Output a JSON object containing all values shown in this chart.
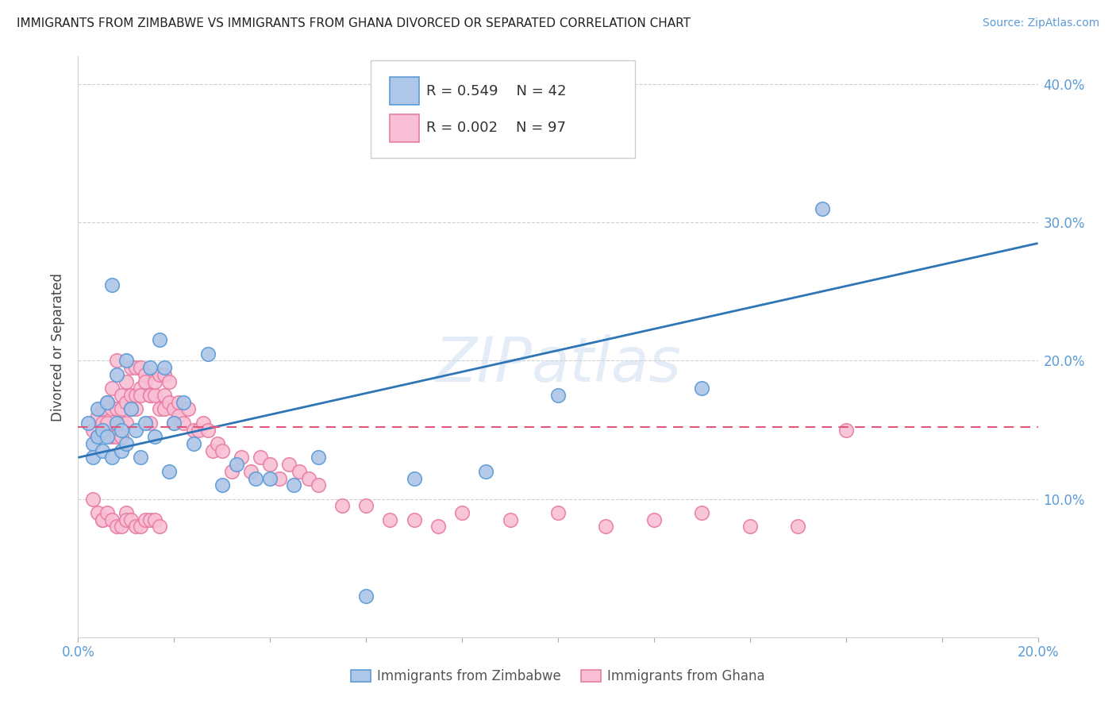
{
  "title": "IMMIGRANTS FROM ZIMBABWE VS IMMIGRANTS FROM GHANA DIVORCED OR SEPARATED CORRELATION CHART",
  "source": "Source: ZipAtlas.com",
  "ylabel": "Divorced or Separated",
  "zim_color": "#aec6e8",
  "zim_edge": "#5b9bd5",
  "ghana_color": "#f9bfd4",
  "ghana_edge": "#e87da4",
  "line_zim_color": "#2e75b6",
  "line_ghana_color": "#e05878",
  "watermark": "ZIPatlas",
  "legend_r1": "R = 0.549",
  "legend_n1": "N = 42",
  "legend_r2": "R = 0.002",
  "legend_n2": "N = 97",
  "xlim": [
    0.0,
    0.2
  ],
  "ylim": [
    0.0,
    0.42
  ],
  "zim_line_x0": 0.0,
  "zim_line_y0": 0.13,
  "zim_line_x1": 0.2,
  "zim_line_y1": 0.285,
  "ghana_line_x0": 0.0,
  "ghana_line_y0": 0.152,
  "ghana_line_x1": 0.2,
  "ghana_line_y1": 0.152,
  "zim_x": [
    0.002,
    0.003,
    0.003,
    0.004,
    0.004,
    0.005,
    0.005,
    0.006,
    0.006,
    0.007,
    0.007,
    0.008,
    0.008,
    0.009,
    0.009,
    0.01,
    0.01,
    0.011,
    0.012,
    0.013,
    0.014,
    0.015,
    0.016,
    0.017,
    0.018,
    0.019,
    0.02,
    0.022,
    0.024,
    0.027,
    0.03,
    0.033,
    0.037,
    0.04,
    0.045,
    0.05,
    0.06,
    0.07,
    0.085,
    0.1,
    0.13,
    0.155
  ],
  "zim_y": [
    0.155,
    0.14,
    0.13,
    0.165,
    0.145,
    0.15,
    0.135,
    0.17,
    0.145,
    0.255,
    0.13,
    0.19,
    0.155,
    0.15,
    0.135,
    0.2,
    0.14,
    0.165,
    0.15,
    0.13,
    0.155,
    0.195,
    0.145,
    0.215,
    0.195,
    0.12,
    0.155,
    0.17,
    0.14,
    0.205,
    0.11,
    0.125,
    0.115,
    0.115,
    0.11,
    0.13,
    0.03,
    0.115,
    0.12,
    0.175,
    0.18,
    0.31
  ],
  "ghana_x": [
    0.003,
    0.004,
    0.004,
    0.005,
    0.005,
    0.006,
    0.006,
    0.007,
    0.007,
    0.007,
    0.008,
    0.008,
    0.008,
    0.009,
    0.009,
    0.009,
    0.009,
    0.01,
    0.01,
    0.01,
    0.011,
    0.011,
    0.011,
    0.012,
    0.012,
    0.012,
    0.013,
    0.013,
    0.013,
    0.014,
    0.014,
    0.015,
    0.015,
    0.015,
    0.016,
    0.016,
    0.017,
    0.017,
    0.018,
    0.018,
    0.018,
    0.019,
    0.019,
    0.02,
    0.02,
    0.021,
    0.021,
    0.022,
    0.023,
    0.024,
    0.025,
    0.026,
    0.027,
    0.028,
    0.029,
    0.03,
    0.032,
    0.034,
    0.036,
    0.038,
    0.04,
    0.042,
    0.044,
    0.046,
    0.048,
    0.05,
    0.055,
    0.06,
    0.065,
    0.07,
    0.075,
    0.08,
    0.09,
    0.1,
    0.11,
    0.12,
    0.13,
    0.14,
    0.15,
    0.16,
    0.003,
    0.004,
    0.005,
    0.005,
    0.006,
    0.007,
    0.008,
    0.009,
    0.01,
    0.01,
    0.011,
    0.012,
    0.013,
    0.014,
    0.015,
    0.016,
    0.017
  ],
  "ghana_y": [
    0.15,
    0.145,
    0.16,
    0.155,
    0.165,
    0.155,
    0.17,
    0.145,
    0.165,
    0.18,
    0.145,
    0.165,
    0.2,
    0.155,
    0.175,
    0.165,
    0.145,
    0.155,
    0.185,
    0.17,
    0.175,
    0.195,
    0.165,
    0.175,
    0.195,
    0.165,
    0.195,
    0.18,
    0.175,
    0.19,
    0.185,
    0.175,
    0.175,
    0.155,
    0.175,
    0.185,
    0.19,
    0.165,
    0.19,
    0.175,
    0.165,
    0.185,
    0.17,
    0.165,
    0.155,
    0.17,
    0.16,
    0.155,
    0.165,
    0.15,
    0.15,
    0.155,
    0.15,
    0.135,
    0.14,
    0.135,
    0.12,
    0.13,
    0.12,
    0.13,
    0.125,
    0.115,
    0.125,
    0.12,
    0.115,
    0.11,
    0.095,
    0.095,
    0.085,
    0.085,
    0.08,
    0.09,
    0.085,
    0.09,
    0.08,
    0.085,
    0.09,
    0.08,
    0.08,
    0.15,
    0.1,
    0.09,
    0.085,
    0.085,
    0.09,
    0.085,
    0.08,
    0.08,
    0.09,
    0.085,
    0.085,
    0.08,
    0.08,
    0.085,
    0.085,
    0.085,
    0.08
  ]
}
